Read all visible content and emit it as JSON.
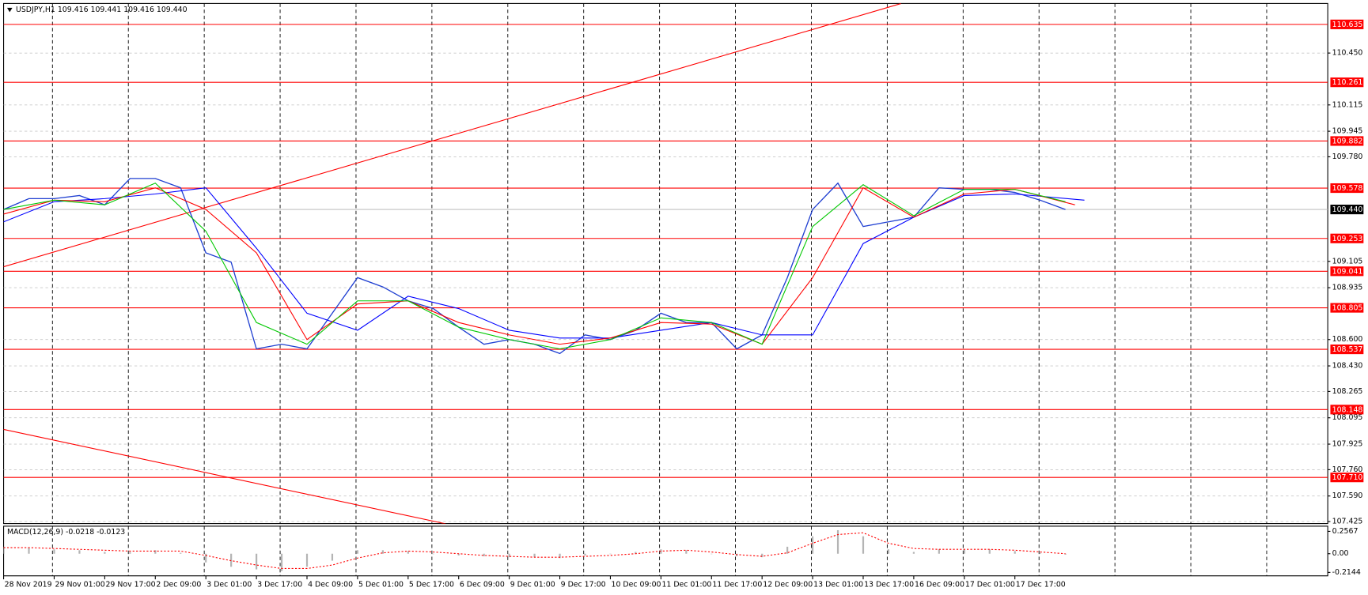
{
  "chart_data": [
    {
      "type": "line",
      "title": "USDJPY,H1  109.416 109.441 109.416 109.440",
      "xlim": [
        0,
        419
      ],
      "ylim": [
        107.412,
        110.77
      ],
      "grid": true,
      "xticks": [
        {
          "value": 0,
          "label": "28 Nov 2019"
        },
        {
          "value": 16,
          "label": "29 Nov 01:00"
        },
        {
          "value": 32,
          "label": "29 Nov 17:00"
        },
        {
          "value": 48,
          "label": "2 Dec 09:00"
        },
        {
          "value": 64,
          "label": "3 Dec 01:00"
        },
        {
          "value": 80,
          "label": "3 Dec 17:00"
        },
        {
          "value": 96,
          "label": "4 Dec 09:00"
        },
        {
          "value": 112,
          "label": "5 Dec 01:00"
        },
        {
          "value": 128,
          "label": "5 Dec 17:00"
        },
        {
          "value": 144,
          "label": "6 Dec 09:00"
        },
        {
          "value": 160,
          "label": "9 Dec 01:00"
        },
        {
          "value": 176,
          "label": "9 Dec 17:00"
        },
        {
          "value": 192,
          "label": "10 Dec 09:00"
        },
        {
          "value": 208,
          "label": "11 Dec 01:00"
        },
        {
          "value": 224,
          "label": "11 Dec 17:00"
        },
        {
          "value": 240,
          "label": "12 Dec 09:00"
        },
        {
          "value": 256,
          "label": "13 Dec 01:00"
        },
        {
          "value": 272,
          "label": "13 Dec 17:00"
        },
        {
          "value": 288,
          "label": "16 Dec 09:00"
        },
        {
          "value": 304,
          "label": "17 Dec 01:00"
        },
        {
          "value": 320,
          "label": "17 Dec 17:00"
        }
      ],
      "yticks": [
        {
          "value": 110.45,
          "label": "110.450"
        },
        110.115,
        109.945,
        {
          "value": 109.78,
          "label": "109.780"
        },
        109.105,
        108.935,
        {
          "value": 108.6,
          "label": "108.600"
        },
        {
          "value": 108.43,
          "label": "108.430"
        },
        108.265,
        108.095,
        107.925,
        {
          "value": 107.76,
          "label": "107.760"
        },
        {
          "value": 107.59,
          "label": "107.590"
        },
        107.425
      ],
      "levels": [
        110.635,
        110.261,
        109.882,
        109.578,
        109.253,
        109.041,
        108.805,
        108.537,
        108.148,
        {
          "value": 107.71,
          "label": "107.710"
        }
      ],
      "level_color": "#ff0000",
      "current_price": {
        "value": 109.44,
        "label": "109.440"
      },
      "trendlines": [
        {
          "color": "#ff0000",
          "x": [
            0,
            284
          ],
          "y": [
            109.07,
            110.77
          ]
        },
        {
          "color": "#ff0000",
          "x": [
            0,
            140
          ],
          "y": [
            108.02,
            107.41
          ]
        }
      ],
      "series": [
        {
          "color": "#1f3fd1",
          "x": [
            0,
            8,
            16,
            24,
            32,
            40,
            48,
            56,
            64,
            72,
            80,
            88,
            96,
            104,
            112,
            120,
            128,
            136,
            144,
            152,
            160,
            168,
            176,
            184,
            192,
            200,
            208,
            216,
            224,
            232,
            240,
            248,
            256,
            264,
            272,
            280,
            288,
            296,
            304,
            312,
            320,
            328,
            336
          ],
          "values": [
            109.44,
            109.51,
            109.51,
            109.53,
            109.47,
            109.64,
            109.64,
            109.58,
            109.16,
            109.1,
            108.54,
            108.57,
            108.54,
            108.77,
            109.0,
            108.94,
            108.85,
            108.8,
            108.68,
            108.57,
            108.6,
            108.57,
            108.51,
            108.63,
            108.6,
            108.66,
            108.77,
            108.71,
            108.71,
            108.54,
            108.63,
            109.0,
            109.44,
            109.61,
            109.33,
            109.36,
            109.39,
            109.58,
            109.57,
            109.57,
            109.55,
            109.5,
            109.44
          ]
        },
        {
          "color": "#0000ff",
          "x": [
            0,
            16,
            32,
            48,
            64,
            80,
            96,
            112,
            128,
            144,
            160,
            176,
            192,
            208,
            224,
            240,
            256,
            272,
            288,
            304,
            320,
            342
          ],
          "values": [
            109.36,
            109.49,
            109.51,
            109.54,
            109.58,
            109.19,
            108.77,
            108.66,
            108.88,
            108.8,
            108.66,
            108.61,
            108.61,
            108.66,
            108.71,
            108.63,
            108.63,
            109.22,
            109.39,
            109.53,
            109.54,
            109.5
          ]
        },
        {
          "color": "#ff0000",
          "x": [
            0,
            16,
            32,
            48,
            64,
            80,
            96,
            112,
            128,
            144,
            160,
            176,
            192,
            208,
            224,
            240,
            256,
            272,
            288,
            304,
            320,
            339
          ],
          "values": [
            109.41,
            109.5,
            109.49,
            109.58,
            109.44,
            109.16,
            108.6,
            108.83,
            108.85,
            108.71,
            108.63,
            108.57,
            108.61,
            108.71,
            108.7,
            108.57,
            109.0,
            109.58,
            109.39,
            109.54,
            109.57,
            109.47
          ]
        },
        {
          "color": "#00c800",
          "x": [
            0,
            16,
            32,
            48,
            64,
            80,
            96,
            112,
            128,
            144,
            160,
            176,
            192,
            208,
            224,
            240,
            256,
            272,
            288,
            304,
            320,
            336
          ],
          "values": [
            109.44,
            109.5,
            109.47,
            109.61,
            109.3,
            108.71,
            108.57,
            108.85,
            108.85,
            108.68,
            108.6,
            108.54,
            108.6,
            108.74,
            108.71,
            108.57,
            109.33,
            109.6,
            109.4,
            109.57,
            109.57,
            109.49
          ]
        }
      ]
    },
    {
      "type": "bar",
      "title": "MACD(12,26,9) -0.0218 -0.0123",
      "xlim": [
        0,
        419
      ],
      "ylim": [
        -0.254,
        0.316
      ],
      "yticks": [
        0.2567,
        {
          "value": 0,
          "label": "0.00"
        },
        -0.2144
      ],
      "color": "#b4b4b4",
      "x": [
        0,
        8,
        16,
        24,
        32,
        40,
        48,
        56,
        64,
        72,
        80,
        88,
        96,
        104,
        112,
        120,
        128,
        136,
        144,
        152,
        160,
        168,
        176,
        184,
        192,
        200,
        208,
        216,
        224,
        232,
        240,
        248,
        256,
        264,
        272,
        280,
        288,
        296,
        304,
        312,
        320,
        328,
        336
      ],
      "values": [
        0.08,
        0.07,
        0.05,
        0.04,
        0.02,
        0.02,
        0.04,
        0.01,
        -0.1,
        -0.15,
        -0.18,
        -0.2,
        -0.15,
        -0.08,
        0.04,
        0.04,
        0.03,
        0.0,
        -0.02,
        -0.03,
        -0.04,
        -0.04,
        -0.05,
        -0.02,
        0.0,
        0.02,
        0.05,
        0.04,
        0.0,
        -0.03,
        -0.04,
        0.08,
        0.2,
        0.27,
        0.2,
        0.05,
        0.02,
        0.05,
        0.05,
        0.05,
        0.03,
        0.01,
        -0.01
      ],
      "signal": {
        "color": "#ff0000",
        "values": [
          0.07,
          0.07,
          0.06,
          0.05,
          0.04,
          0.03,
          0.03,
          0.03,
          -0.02,
          -0.08,
          -0.13,
          -0.17,
          -0.17,
          -0.13,
          -0.05,
          0.01,
          0.03,
          0.02,
          0.0,
          -0.02,
          -0.03,
          -0.04,
          -0.04,
          -0.03,
          -0.02,
          0.0,
          0.03,
          0.04,
          0.02,
          -0.01,
          -0.03,
          0.01,
          0.12,
          0.22,
          0.24,
          0.12,
          0.06,
          0.05,
          0.05,
          0.05,
          0.04,
          0.02,
          0.0
        ]
      }
    }
  ]
}
